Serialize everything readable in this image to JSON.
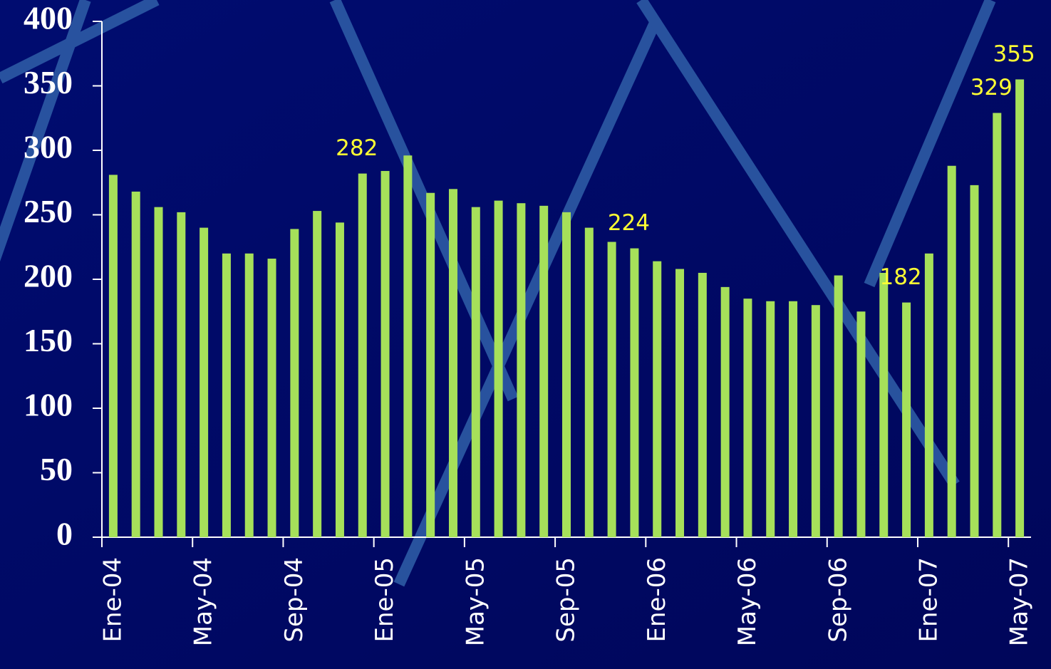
{
  "chart_data": {
    "type": "bar",
    "categories": [
      "Ene-04",
      null,
      null,
      null,
      "May-04",
      null,
      null,
      null,
      "Sep-04",
      null,
      null,
      null,
      "Ene-05",
      null,
      null,
      null,
      "May-05",
      null,
      null,
      null,
      "Sep-05",
      null,
      null,
      null,
      "Ene-06",
      null,
      null,
      null,
      "May-06",
      null,
      null,
      null,
      "Sep-06",
      null,
      null,
      null,
      "Ene-07",
      null,
      null,
      null,
      "May-07"
    ],
    "values": [
      281,
      268,
      256,
      252,
      240,
      220,
      220,
      216,
      239,
      253,
      244,
      282,
      284,
      296,
      267,
      270,
      256,
      261,
      259,
      257,
      252,
      240,
      229,
      224,
      214,
      208,
      205,
      194,
      185,
      183,
      183,
      180,
      203,
      175,
      205,
      182,
      220,
      288,
      273,
      329,
      355
    ],
    "value_labels": [
      null,
      null,
      null,
      null,
      null,
      null,
      null,
      null,
      null,
      null,
      null,
      "282",
      null,
      null,
      null,
      null,
      null,
      null,
      null,
      null,
      null,
      null,
      null,
      "224",
      null,
      null,
      null,
      null,
      null,
      null,
      null,
      null,
      null,
      null,
      null,
      "182",
      null,
      null,
      null,
      "329",
      "355"
    ],
    "color": "#a6e05a",
    "ylim": [
      0,
      400
    ],
    "yticks": [
      0,
      50,
      100,
      150,
      200,
      250,
      300,
      350,
      400
    ]
  }
}
